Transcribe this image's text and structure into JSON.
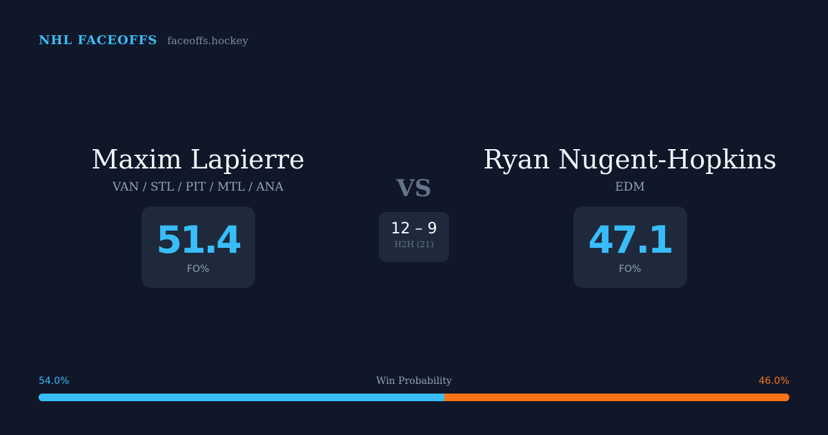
{
  "brand": {
    "name": "NHL FACEOFFS",
    "url": "faceoffs.hockey"
  },
  "player1": {
    "name": "Maxim Lapierre",
    "teams": "VAN / STL / PIT / MTL / ANA",
    "fo_pct": "51.4",
    "fo_label": "FO%"
  },
  "player2": {
    "name": "Ryan Nugent-Hopkins",
    "teams": "EDM",
    "fo_pct": "47.1",
    "fo_label": "FO%"
  },
  "vs": "VS",
  "h2h": {
    "score": "12 – 9",
    "label": "H2H (21)"
  },
  "win_probability": {
    "title": "Win Probability",
    "left": "54.0%",
    "right": "46.0%",
    "left_value": 54.0,
    "right_value": 46.0
  },
  "colors": {
    "player1": "#38bdf8",
    "player2": "#f97316",
    "background": "#0f1729",
    "card": "#1e293b"
  }
}
